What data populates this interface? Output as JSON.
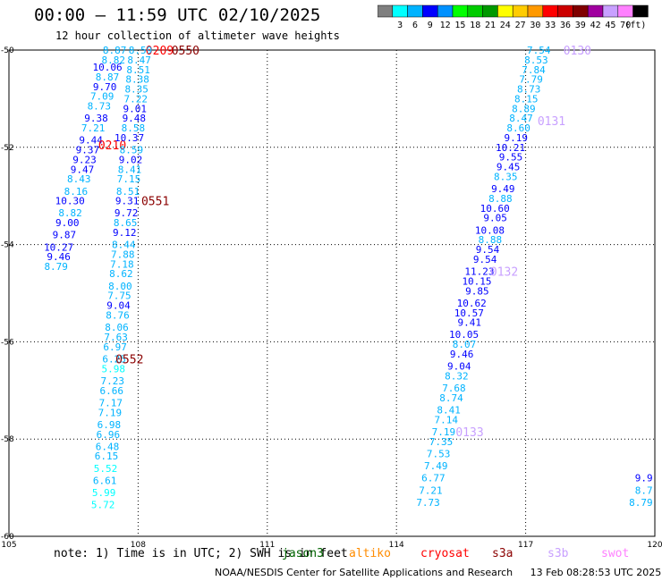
{
  "header": {
    "title": "00:00 – 11:59 UTC 02/10/2025",
    "subtitle": "12 hour collection of altimeter wave heights"
  },
  "colorbar": {
    "colors": [
      "#7f7f7f",
      "#00ffff",
      "#00b3ff",
      "#0000ff",
      "#0091ff",
      "#00ff00",
      "#00cc00",
      "#009900",
      "#ffff00",
      "#ffcc00",
      "#ff9900",
      "#ff0000",
      "#cc0000",
      "#800000",
      "#a0009f",
      "#c8a0ff",
      "#ff80ff",
      "#000000"
    ],
    "labels": [
      "3",
      "6",
      "9",
      "12",
      "15",
      "18",
      "21",
      "24",
      "27",
      "30",
      "33",
      "36",
      "39",
      "42",
      "45",
      "70"
    ],
    "unit": "(ft)"
  },
  "chart_data": {
    "type": "scatter",
    "title": "00:00 – 11:59 UTC 02/10/2025",
    "subtitle": "12 hour collection of altimeter wave heights",
    "xlabel": "",
    "ylabel": "",
    "xlim": [
      105,
      120
    ],
    "ylim": [
      -60,
      -50
    ],
    "xticks": [
      105,
      108,
      111,
      114,
      117,
      120
    ],
    "yticks": [
      -50,
      -52,
      -54,
      -56,
      -58,
      -60
    ],
    "xtick_labels": [
      "105",
      "108",
      "111",
      "114",
      "117",
      "120"
    ],
    "ytick_labels": [
      "-50",
      "-52",
      "-54",
      "-56",
      "-58",
      "-60"
    ],
    "grid": true,
    "color_scale": {
      "bounds": [
        3,
        6,
        9,
        12,
        15,
        18,
        21,
        24,
        27,
        30,
        33,
        36,
        39,
        42,
        45,
        70
      ],
      "colors": [
        "#7f7f7f",
        "#00ffff",
        "#00b3ff",
        "#0000ff",
        "#0091ff",
        "#00ff00",
        "#00cc00",
        "#009900",
        "#ffff00",
        "#ffcc00",
        "#ff9900",
        "#ff0000",
        "#cc0000",
        "#800000",
        "#a0009f",
        "#c8a0ff",
        "#ff80ff",
        "#000000"
      ]
    },
    "tracks": [
      {
        "name": "jason3",
        "color": "#006400",
        "points": []
      },
      {
        "name": "altiko",
        "color": "#ff8c00",
        "points": []
      },
      {
        "name": "cryosat",
        "color": "#ff0000",
        "points": [
          [
            107.73,
            -50.0,
            "8.87"
          ],
          [
            107.7,
            -50.2,
            "8.82"
          ],
          [
            107.63,
            -50.35,
            "10.06"
          ],
          [
            107.56,
            -50.55,
            "8.87"
          ],
          [
            107.5,
            -50.75,
            "9.70"
          ],
          [
            107.44,
            -50.95,
            "7.09"
          ],
          [
            107.37,
            -51.15,
            "8.73"
          ],
          [
            107.3,
            -51.4,
            "9.38"
          ],
          [
            107.23,
            -51.6,
            "7.21"
          ],
          [
            107.18,
            -51.85,
            "9.44"
          ],
          [
            107.1,
            -52.05,
            "9.37"
          ],
          [
            107.03,
            -52.25,
            "9.23"
          ],
          [
            106.98,
            -52.45,
            "9.47"
          ],
          [
            106.9,
            -52.65,
            "8.43"
          ],
          [
            106.83,
            -52.9,
            "8.16"
          ],
          [
            106.76,
            -53.1,
            "10.30"
          ],
          [
            106.7,
            -53.35,
            "8.82"
          ],
          [
            106.63,
            -53.55,
            "9.00"
          ],
          [
            106.56,
            -53.8,
            "9.87"
          ],
          [
            106.5,
            -54.05,
            "10.27"
          ],
          [
            106.43,
            -54.25,
            "9.46"
          ],
          [
            106.37,
            -54.45,
            "8.79"
          ]
        ],
        "labels": [
          [
            108.5,
            -50.0,
            "0209"
          ],
          [
            107.4,
            -51.95,
            "0210"
          ]
        ]
      },
      {
        "name": "s3a",
        "color": "#8b0000",
        "points": [
          [
            108.33,
            -50.0,
            "8.59"
          ],
          [
            108.3,
            -50.2,
            "8.47"
          ],
          [
            108.28,
            -50.4,
            "8.51"
          ],
          [
            108.26,
            -50.6,
            "8.38"
          ],
          [
            108.24,
            -50.8,
            "8.35"
          ],
          [
            108.22,
            -51.0,
            "7.22"
          ],
          [
            108.2,
            -51.2,
            "9.01"
          ],
          [
            108.18,
            -51.4,
            "9.48"
          ],
          [
            108.16,
            -51.6,
            "8.58"
          ],
          [
            108.14,
            -51.8,
            "10.37"
          ],
          [
            108.12,
            -52.05,
            "8.59"
          ],
          [
            108.1,
            -52.25,
            "9.02"
          ],
          [
            108.08,
            -52.45,
            "8.41"
          ],
          [
            108.06,
            -52.65,
            "7.15"
          ],
          [
            108.04,
            -52.9,
            "8.51"
          ],
          [
            108.02,
            -53.1,
            "9.31"
          ],
          [
            108.0,
            -53.35,
            "9.72"
          ],
          [
            107.98,
            -53.55,
            "8.65"
          ],
          [
            107.96,
            -53.75,
            "9.12"
          ],
          [
            107.94,
            -54.0,
            "8.44"
          ],
          [
            107.92,
            -54.2,
            "7.88"
          ],
          [
            107.9,
            -54.4,
            "7.18"
          ],
          [
            107.88,
            -54.6,
            "8.62"
          ],
          [
            107.86,
            -54.85,
            "8.00"
          ],
          [
            107.84,
            -55.05,
            "7.75"
          ],
          [
            107.82,
            -55.25,
            "9.04"
          ],
          [
            107.8,
            -55.45,
            "8.76"
          ],
          [
            107.78,
            -55.7,
            "8.06"
          ],
          [
            107.76,
            -55.9,
            "7.63"
          ],
          [
            107.74,
            -56.1,
            "6.97"
          ],
          [
            107.72,
            -56.35,
            "6.25"
          ],
          [
            107.7,
            -56.55,
            "5.98"
          ],
          [
            107.68,
            -56.8,
            "7.23"
          ],
          [
            107.66,
            -57.0,
            "6.66"
          ],
          [
            107.64,
            -57.25,
            "7.17"
          ],
          [
            107.62,
            -57.45,
            "7.19"
          ],
          [
            107.6,
            -57.7,
            "6.98"
          ],
          [
            107.58,
            -57.9,
            "6.96"
          ],
          [
            107.56,
            -58.15,
            "6.48"
          ],
          [
            107.54,
            -58.35,
            "6.15"
          ],
          [
            107.52,
            -58.6,
            "5.52"
          ],
          [
            107.5,
            -58.85,
            "6.61"
          ],
          [
            107.48,
            -59.1,
            "5.99"
          ],
          [
            107.46,
            -59.35,
            "5.72"
          ]
        ],
        "labels": [
          [
            109.1,
            -50.0,
            "0550"
          ],
          [
            108.4,
            -53.1,
            "0551"
          ],
          [
            107.8,
            -56.35,
            "0552"
          ]
        ]
      },
      {
        "name": "s3b",
        "color": "#c8a0ff",
        "points": [
          [
            117.58,
            -50.0,
            "7.54"
          ],
          [
            117.52,
            -50.2,
            "8.53"
          ],
          [
            117.46,
            -50.4,
            "7.84"
          ],
          [
            117.4,
            -50.6,
            "7.79"
          ],
          [
            117.35,
            -50.8,
            "8.73"
          ],
          [
            117.29,
            -51.0,
            "8.15"
          ],
          [
            117.23,
            -51.2,
            "8.89"
          ],
          [
            117.17,
            -51.4,
            "8.47"
          ],
          [
            117.11,
            -51.6,
            "8.60"
          ],
          [
            117.05,
            -51.8,
            "9.19"
          ],
          [
            116.99,
            -52.0,
            "10.21"
          ],
          [
            116.93,
            -52.2,
            "9.55"
          ],
          [
            116.87,
            -52.4,
            "9.45"
          ],
          [
            116.81,
            -52.6,
            "8.35"
          ],
          [
            116.75,
            -52.85,
            "9.49"
          ],
          [
            116.69,
            -53.05,
            "8.88"
          ],
          [
            116.63,
            -53.25,
            "10.60"
          ],
          [
            116.57,
            -53.45,
            "9.05"
          ],
          [
            116.51,
            -53.7,
            "10.08"
          ],
          [
            116.45,
            -53.9,
            "8.88"
          ],
          [
            116.39,
            -54.1,
            "9.54"
          ],
          [
            116.33,
            -54.3,
            "9.54"
          ],
          [
            116.27,
            -54.55,
            "11.23"
          ],
          [
            116.21,
            -54.75,
            "10.15"
          ],
          [
            116.15,
            -54.95,
            "9.85"
          ],
          [
            116.09,
            -55.2,
            "10.62"
          ],
          [
            116.03,
            -55.4,
            "10.57"
          ],
          [
            115.97,
            -55.6,
            "9.41"
          ],
          [
            115.91,
            -55.85,
            "10.05"
          ],
          [
            115.85,
            -56.05,
            "8.07"
          ],
          [
            115.79,
            -56.25,
            "9.46"
          ],
          [
            115.73,
            -56.5,
            "9.04"
          ],
          [
            115.67,
            -56.7,
            "8.32"
          ],
          [
            115.61,
            -56.95,
            "7.68"
          ],
          [
            115.55,
            -57.15,
            "8.74"
          ],
          [
            115.49,
            -57.4,
            "8.41"
          ],
          [
            115.43,
            -57.6,
            "7.14"
          ],
          [
            115.37,
            -57.85,
            "7.19"
          ],
          [
            115.31,
            -58.05,
            "7.35"
          ],
          [
            115.25,
            -58.3,
            "7.53"
          ],
          [
            115.19,
            -58.55,
            "7.49"
          ],
          [
            115.13,
            -58.8,
            "6.77"
          ],
          [
            115.07,
            -59.05,
            "7.21"
          ],
          [
            115.01,
            -59.3,
            "7.73"
          ]
        ],
        "labels": [
          [
            118.2,
            -50.0,
            "0130"
          ],
          [
            117.6,
            -51.45,
            "0131"
          ],
          [
            116.5,
            -54.55,
            "0132"
          ],
          [
            115.7,
            -57.85,
            "0133"
          ]
        ]
      },
      {
        "name": "swot",
        "color": "#ff80ff",
        "points": [
          [
            119.95,
            -58.8,
            "9.9"
          ],
          [
            119.95,
            -59.05,
            "8.7"
          ],
          [
            119.95,
            -59.3,
            "8.79"
          ]
        ],
        "labels": []
      }
    ]
  },
  "note": {
    "text": "note:  1) Time is in UTC;  2) SWH is in feet",
    "legend": [
      {
        "name": "jason3",
        "color": "#006400"
      },
      {
        "name": "altiko",
        "color": "#ff8c00"
      },
      {
        "name": "cryosat",
        "color": "#ff0000"
      },
      {
        "name": "s3a",
        "color": "#8b0000"
      },
      {
        "name": "s3b",
        "color": "#c8a0ff"
      },
      {
        "name": "swot",
        "color": "#ff80ff"
      }
    ]
  },
  "footer": {
    "org": "NOAA/NESDIS Center for Satellite Applications and Research",
    "timestamp": "13 Feb 08:28:53 UTC 2025"
  }
}
